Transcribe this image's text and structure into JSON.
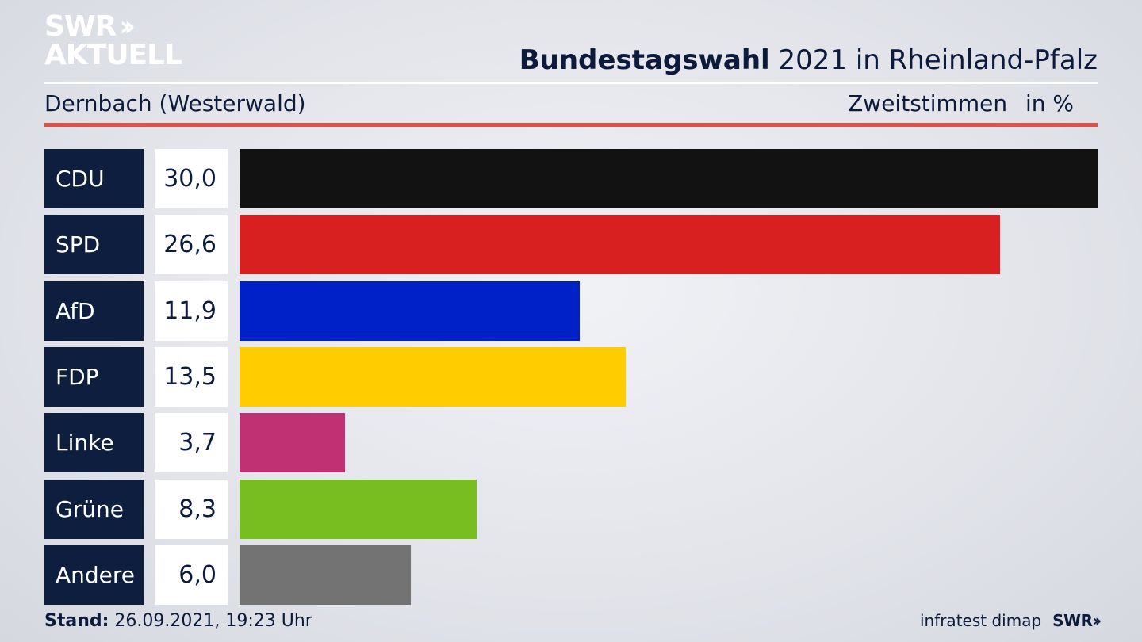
{
  "brand": {
    "logo_line1": "SWR",
    "logo_line2": "AKTUELL",
    "logo_chevrons": "››"
  },
  "header": {
    "title_bold": "Bundestagswahl",
    "title_rest": " 2021 in Rheinland-Pfalz",
    "subtitle": "Dernbach (Westerwald)",
    "metric": "Zweitstimmen",
    "unit": "in %"
  },
  "chart_data": {
    "type": "bar",
    "orientation": "horizontal",
    "categories": [
      "CDU",
      "SPD",
      "AfD",
      "FDP",
      "Linke",
      "Grüne",
      "Andere"
    ],
    "values": [
      30.0,
      26.6,
      11.9,
      13.5,
      3.7,
      8.3,
      6.0
    ],
    "value_labels": [
      "30,0",
      "26,6",
      "11,9",
      "13,5",
      "3,7",
      "8,3",
      "6,0"
    ],
    "colors": [
      "#121212",
      "#d82020",
      "#0021c8",
      "#ffcc00",
      "#bf3173",
      "#78be20",
      "#737373"
    ],
    "xlim": [
      0,
      30
    ],
    "grid": false,
    "legend": "none"
  },
  "footer": {
    "stand_label": "Stand:",
    "stand_value": " 26.09.2021, 19:23 Uhr",
    "source": "infratest dimap",
    "brand": "SWR",
    "brand_chevrons": "››"
  }
}
